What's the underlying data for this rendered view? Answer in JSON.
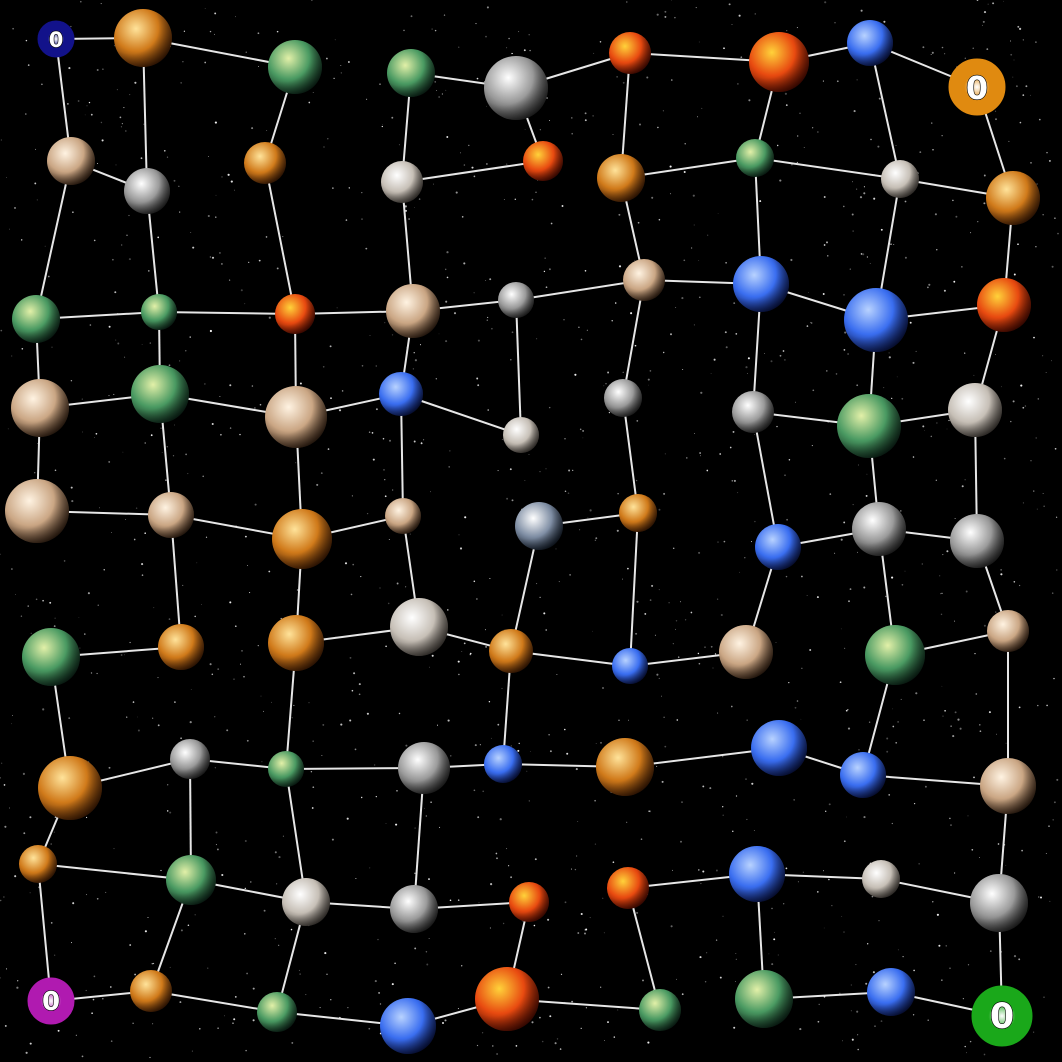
{
  "game": {
    "view": "galaxy-map",
    "colors": {
      "space": "#000000",
      "star": "#ffffff",
      "link": "#e6e6e6"
    },
    "players": [
      {
        "id": "p1",
        "color": "#12128a",
        "score": "0"
      },
      {
        "id": "p2",
        "color": "#e08a10",
        "score": "0"
      },
      {
        "id": "p3",
        "color": "#b01ab0",
        "score": "0"
      },
      {
        "id": "p4",
        "color": "#1aa81a",
        "score": "0"
      }
    ],
    "planet_types": {
      "volcanic": [
        "#ffd23a",
        "#e84a10",
        "#5a0c00"
      ],
      "desert": [
        "#ffe39a",
        "#d07a1a",
        "#4a2004"
      ],
      "tan": [
        "#fff3e2",
        "#caa684",
        "#3c2616"
      ],
      "gray": [
        "#ffffff",
        "#9a9a9a",
        "#2a2a2a"
      ],
      "ocean": [
        "#b8d2ff",
        "#3a6ef0",
        "#0a1650"
      ],
      "jungle": [
        "#e2f0a8",
        "#4a9a62",
        "#0e2a1c"
      ],
      "banded": [
        "#ffffff",
        "#c6bfb6",
        "#4c4640"
      ],
      "earth": [
        "#ffffff",
        "#7f8ea4",
        "#16202e"
      ]
    }
  }
}
